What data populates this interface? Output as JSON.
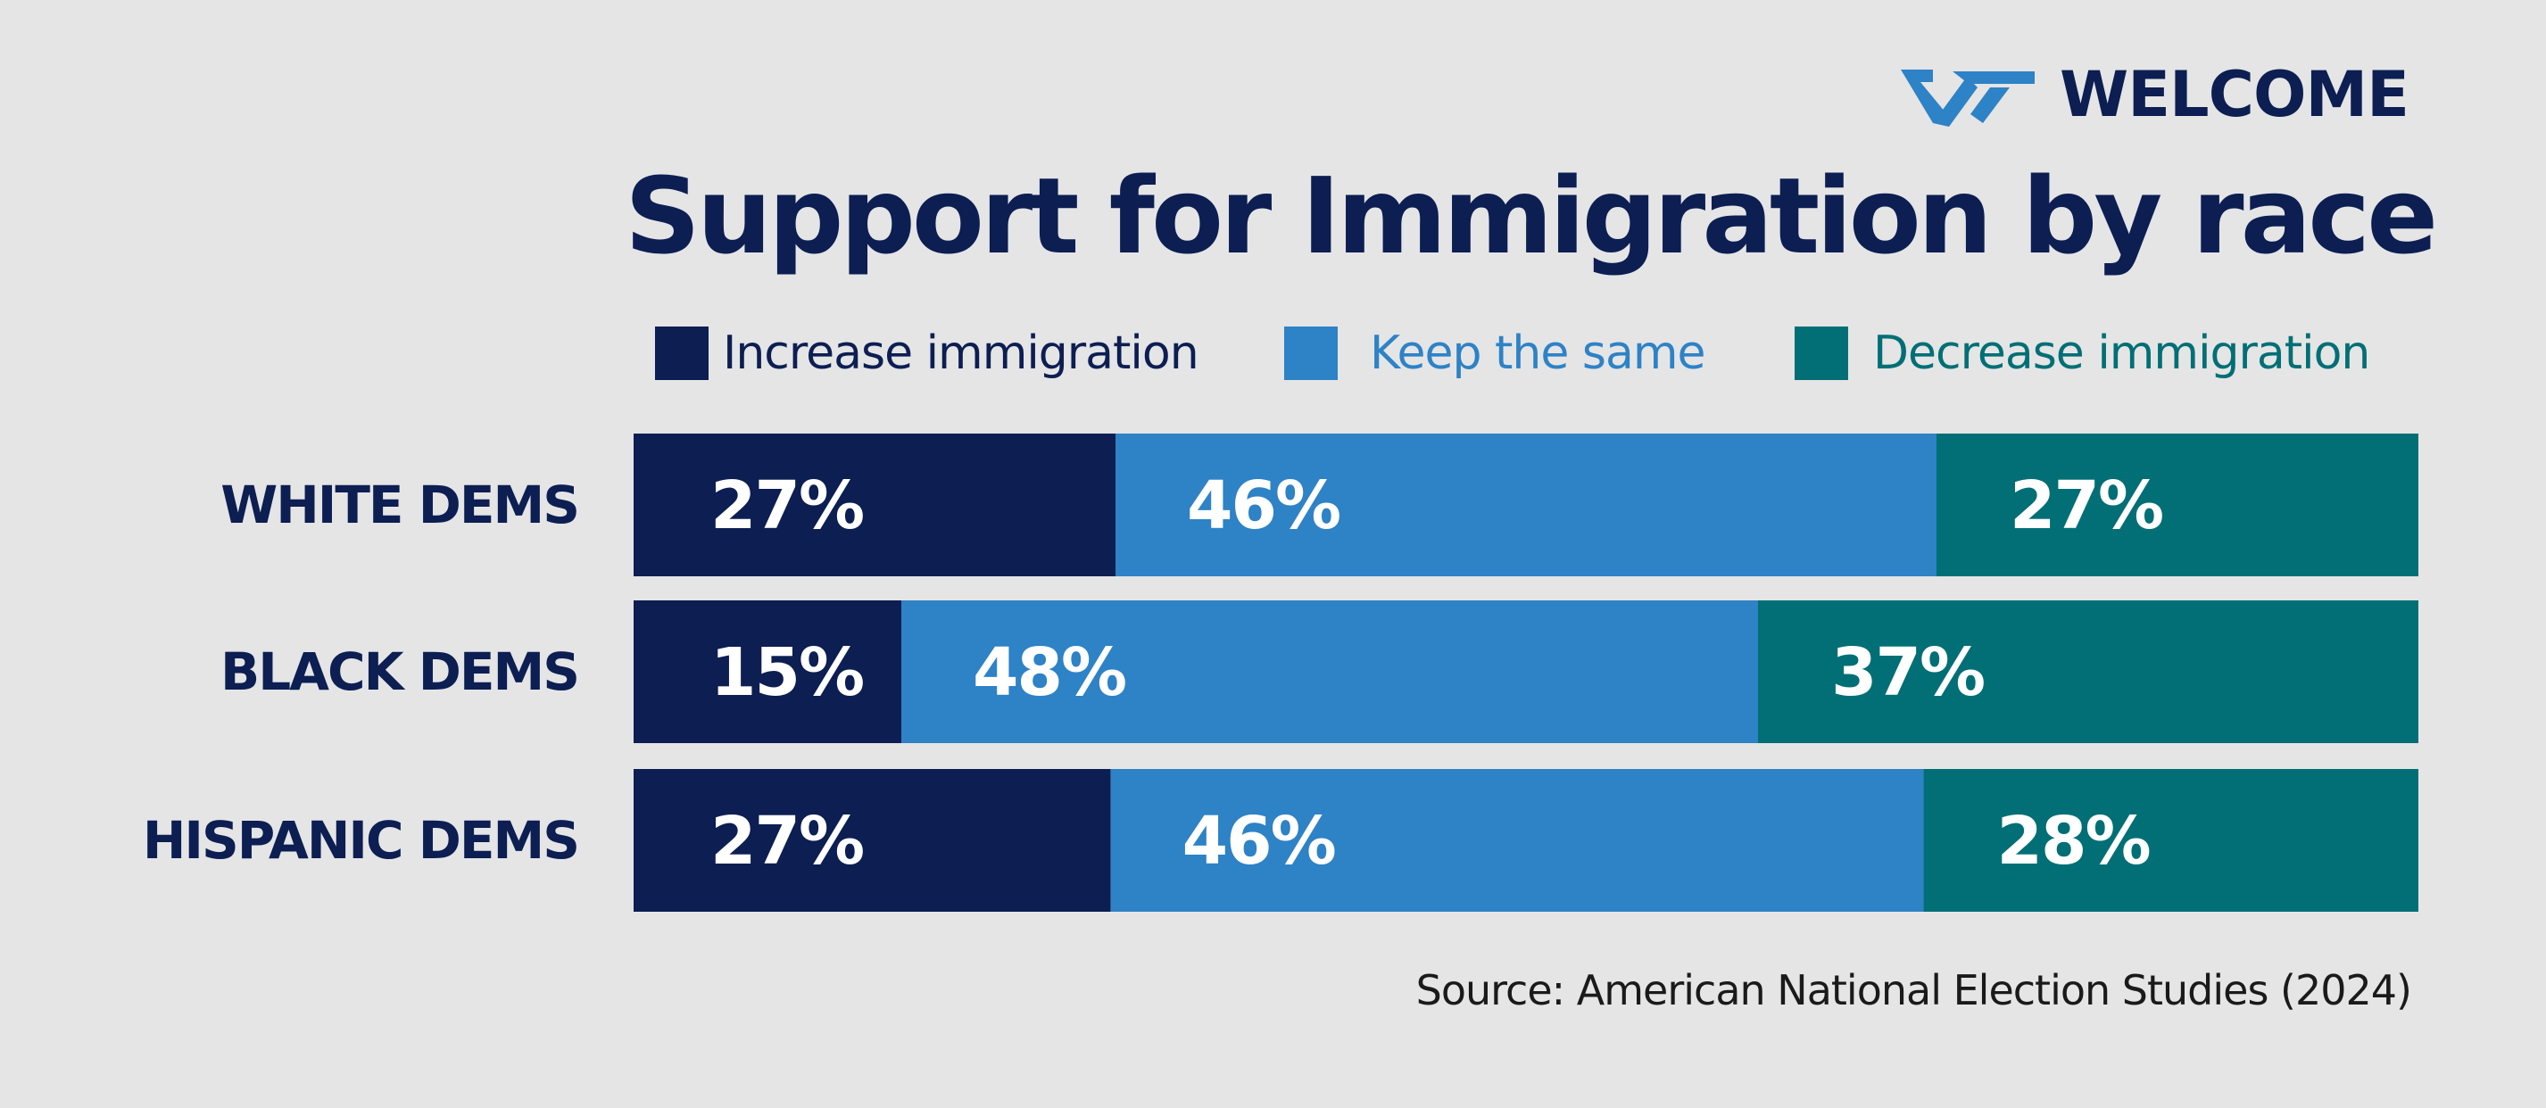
{
  "brand": {
    "name": "WELCOME",
    "logo_icon": "welcome-logo-mark",
    "logo_colors": [
      "#2e82c6",
      "#0c1e52"
    ]
  },
  "title": "Support for Immigration by race",
  "source": "Source: American National Election Studies (2024)",
  "colors": {
    "background": "#e5e5e6",
    "navy": "#0c1e52",
    "blue": "#2e82c6",
    "teal": "#016f75"
  },
  "chart_data": {
    "type": "bar",
    "orientation": "horizontal",
    "stacked": true,
    "title": "Support for Immigration by race",
    "xlabel": "",
    "ylabel": "",
    "xlim": [
      0,
      100
    ],
    "grid": false,
    "legend_position": "top",
    "categories": [
      "WHITE DEMS",
      "BLACK DEMS",
      "HISPANIC DEMS"
    ],
    "series": [
      {
        "name": "Increase immigration",
        "color": "#0c1e52",
        "text_color": "#0c1e52",
        "values": [
          27,
          15,
          27
        ],
        "labels": [
          "27%",
          "15%",
          "27%"
        ]
      },
      {
        "name": "Keep the same",
        "color": "#2e82c6",
        "text_color": "#2e82c6",
        "values": [
          46,
          48,
          46
        ],
        "labels": [
          "46%",
          "48%",
          "46%"
        ]
      },
      {
        "name": "Decrease immigration",
        "color": "#016f75",
        "text_color": "#016f75",
        "values": [
          27,
          37,
          28
        ],
        "labels": [
          "27%",
          "37%",
          "28%"
        ]
      }
    ]
  }
}
